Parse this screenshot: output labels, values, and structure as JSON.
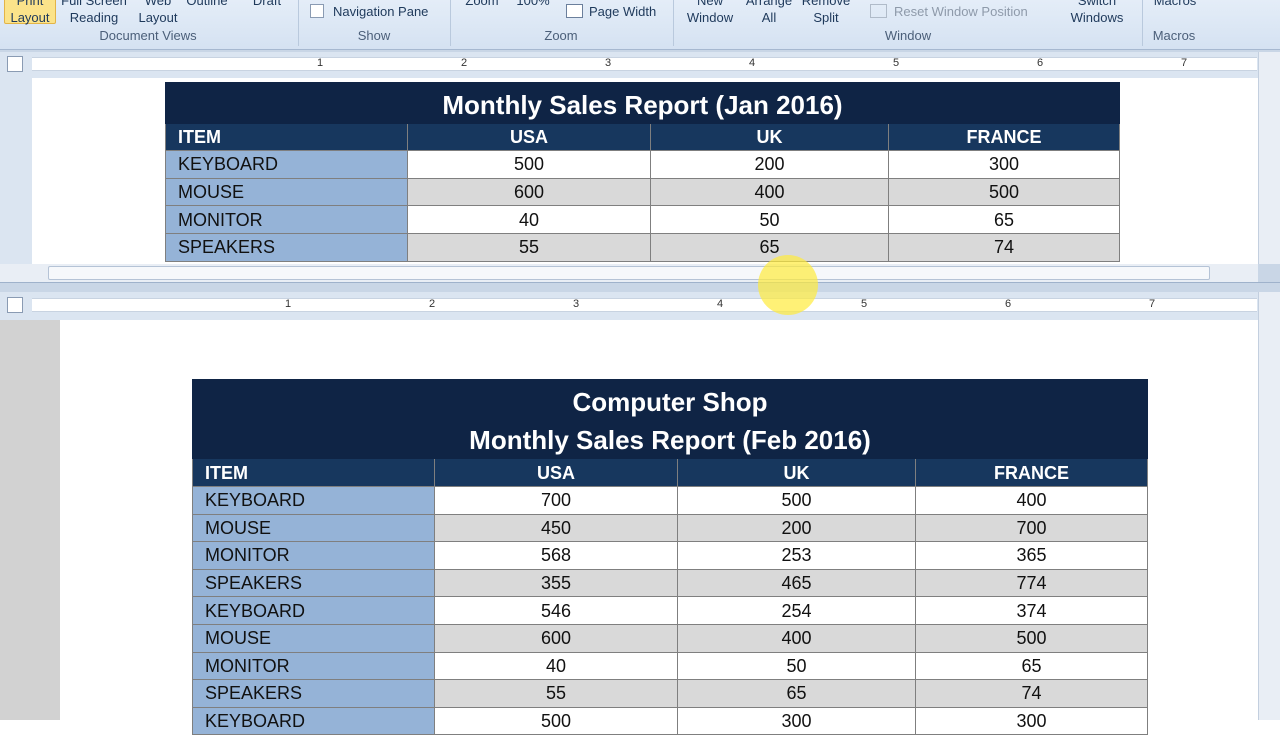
{
  "ribbon": {
    "buttons": [
      {
        "lines": [
          "Print",
          "Layout"
        ]
      },
      {
        "lines": [
          "Full Screen",
          "Reading"
        ]
      },
      {
        "lines": [
          "Web",
          "Layout"
        ]
      },
      {
        "lines": [
          "Outline"
        ]
      },
      {
        "lines": [
          "Draft"
        ]
      },
      {
        "lines": [
          "Navigation Pane"
        ]
      },
      {
        "lines": [
          "Zoom"
        ]
      },
      {
        "lines": [
          "100%"
        ]
      },
      {
        "lines": [
          "Page Width"
        ]
      },
      {
        "lines": [
          "New",
          "Window"
        ]
      },
      {
        "lines": [
          "Arrange",
          "All"
        ]
      },
      {
        "lines": [
          "Remove",
          "Split"
        ]
      },
      {
        "lines": [
          "Reset Window Position"
        ]
      },
      {
        "lines": [
          "Switch",
          "Windows"
        ]
      },
      {
        "lines": [
          "Macros"
        ]
      }
    ],
    "groups": [
      "Document Views",
      "Show",
      "Zoom",
      "Window",
      "Macros"
    ]
  },
  "rulers": [
    {
      "labels": [
        "1",
        "2",
        "3",
        "4",
        "5",
        "6",
        "7"
      ]
    },
    {
      "labels": [
        "1",
        "2",
        "3",
        "4",
        "5",
        "6",
        "7"
      ]
    }
  ],
  "tables": [
    {
      "title": [
        "Monthly Sales Report (Jan 2016)"
      ],
      "header": [
        "ITEM",
        "USA",
        "UK",
        "FRANCE"
      ],
      "rows": [
        [
          "KEYBOARD",
          "500",
          "200",
          "300"
        ],
        [
          "MOUSE",
          "600",
          "400",
          "500"
        ],
        [
          "MONITOR",
          "40",
          "50",
          "65"
        ],
        [
          "SPEAKERS",
          "55",
          "65",
          "74"
        ]
      ]
    },
    {
      "title": [
        "Computer Shop",
        "Monthly Sales Report (Feb 2016)"
      ],
      "header": [
        "ITEM",
        "USA",
        "UK",
        "FRANCE"
      ],
      "rows": [
        [
          "KEYBOARD",
          "700",
          "500",
          "400"
        ],
        [
          "MOUSE",
          "450",
          "200",
          "700"
        ],
        [
          "MONITOR",
          "568",
          "253",
          "365"
        ],
        [
          "SPEAKERS",
          "355",
          "465",
          "774"
        ],
        [
          "KEYBOARD",
          "546",
          "254",
          "374"
        ],
        [
          "MOUSE",
          "600",
          "400",
          "500"
        ],
        [
          "MONITOR",
          "40",
          "50",
          "65"
        ],
        [
          "SPEAKERS",
          "55",
          "65",
          "74"
        ],
        [
          "KEYBOARD",
          "500",
          "300",
          "300"
        ]
      ]
    }
  ]
}
